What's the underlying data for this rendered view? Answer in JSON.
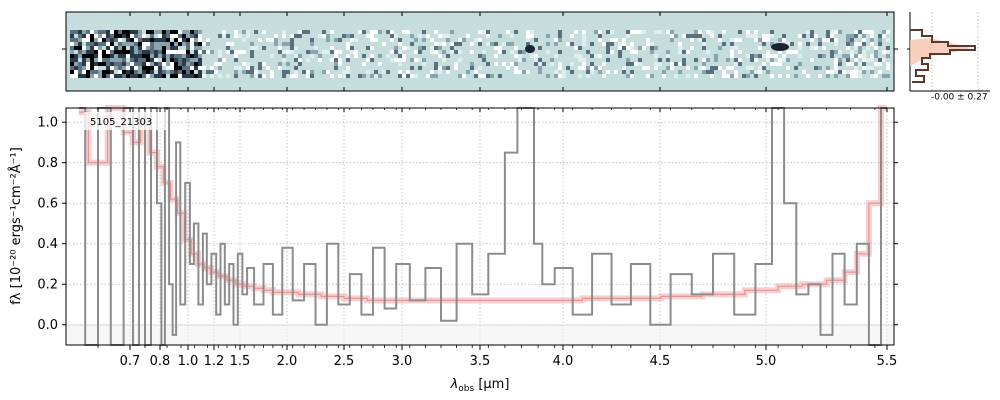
{
  "chart_data": {
    "type": "line",
    "object_id": "5105_21303",
    "xlabel_main": "λ",
    "xlabel_sub": "obs",
    "xlabel_unit": " [μm]",
    "ylabel": "fλ [10⁻²⁰ ergs⁻¹cm⁻²Å⁻¹]",
    "x_ticks": [
      "0.7",
      "0.8",
      "1.0",
      "1.2",
      "1.5",
      "2.0",
      "2.5",
      "3.0",
      "3.5",
      "4.0",
      "4.5",
      "5.0",
      "5.5"
    ],
    "y_ticks": [
      "0.0",
      "0.2",
      "0.4",
      "0.6",
      "0.8",
      "1.0"
    ],
    "ylim": [
      -0.1,
      1.07
    ],
    "xlim": [
      0.6,
      5.52
    ],
    "x_scale": "reciprocal-like (tick labels in μm)",
    "grid": true,
    "profile_label": "-0.00 ± 0.27",
    "colors": {
      "spectrum": "#8c8c8c",
      "model": "#f2a8a8",
      "model_dark": "#d98080",
      "profile": "#5b3a2e",
      "profile_fill": "#f6c3ad",
      "spectrum2d_bg": "#c5dddd"
    },
    "series": [
      {
        "x": [
          0.62,
          0.65,
          0.68,
          0.7,
          0.72,
          0.75,
          0.78,
          0.8,
          0.85,
          0.9,
          0.95,
          1.0,
          1.05,
          1.1,
          1.15,
          1.2,
          1.3,
          1.4,
          1.5,
          1.6,
          1.7,
          1.8,
          1.9,
          2.0,
          2.2,
          2.4,
          2.6,
          2.8,
          3.0,
          3.2,
          3.4,
          3.6,
          3.8,
          4.0,
          4.2,
          4.4,
          4.6,
          4.8,
          5.0,
          5.1,
          5.2,
          5.3,
          5.35,
          5.4,
          5.45,
          5.5
        ],
        "values": [
          1.05,
          0.8,
          1.1,
          0.95,
          0.9,
          1.0,
          0.85,
          0.78,
          0.7,
          0.62,
          0.55,
          0.42,
          0.35,
          0.3,
          0.28,
          0.26,
          0.24,
          0.22,
          0.2,
          0.19,
          0.18,
          0.17,
          0.16,
          0.16,
          0.15,
          0.14,
          0.13,
          0.12,
          0.12,
          0.12,
          0.12,
          0.12,
          0.12,
          0.12,
          0.13,
          0.13,
          0.14,
          0.15,
          0.17,
          0.19,
          0.2,
          0.22,
          0.26,
          0.35,
          0.6,
          1.1
        ]
      },
      {
        "x": [
          0.62,
          0.64,
          0.66,
          0.68,
          0.7,
          0.72,
          0.74,
          0.76,
          0.78,
          0.8,
          0.82,
          0.85,
          0.88,
          0.9,
          0.93,
          0.96,
          1.0,
          1.03,
          1.06,
          1.1,
          1.13,
          1.16,
          1.2,
          1.25,
          1.3,
          1.35,
          1.4,
          1.45,
          1.5,
          1.55,
          1.6,
          1.7,
          1.8,
          1.9,
          2.0,
          2.1,
          2.2,
          2.3,
          2.4,
          2.5,
          2.6,
          2.7,
          2.8,
          2.9,
          3.0,
          3.1,
          3.2,
          3.3,
          3.4,
          3.5,
          3.6,
          3.7,
          3.75,
          3.8,
          3.85,
          3.9,
          4.0,
          4.1,
          4.2,
          4.3,
          4.4,
          4.5,
          4.6,
          4.7,
          4.8,
          4.9,
          5.0,
          5.05,
          5.1,
          5.15,
          5.2,
          5.25,
          5.3,
          5.35,
          5.4,
          5.45,
          5.5
        ],
        "values": [
          1.07,
          -0.1,
          1.07,
          -0.1,
          1.07,
          -0.1,
          1.07,
          -0.1,
          1.07,
          0.6,
          -0.1,
          1.07,
          0.2,
          -0.05,
          0.9,
          0.1,
          0.7,
          0.3,
          0.5,
          0.1,
          0.45,
          0.2,
          0.35,
          0.05,
          0.4,
          0.1,
          0.3,
          0.0,
          0.35,
          0.15,
          0.28,
          0.1,
          0.3,
          0.05,
          0.38,
          0.12,
          0.3,
          0.0,
          0.4,
          0.1,
          0.25,
          0.05,
          0.38,
          0.08,
          0.3,
          0.12,
          0.28,
          0.02,
          0.4,
          0.15,
          0.35,
          0.85,
          1.07,
          1.07,
          0.4,
          0.2,
          0.28,
          0.05,
          0.35,
          0.1,
          0.3,
          0.0,
          0.25,
          0.15,
          0.35,
          0.05,
          0.3,
          1.07,
          0.6,
          0.15,
          0.2,
          -0.05,
          0.35,
          0.1,
          0.4,
          -0.1,
          1.07
        ]
      }
    ]
  }
}
